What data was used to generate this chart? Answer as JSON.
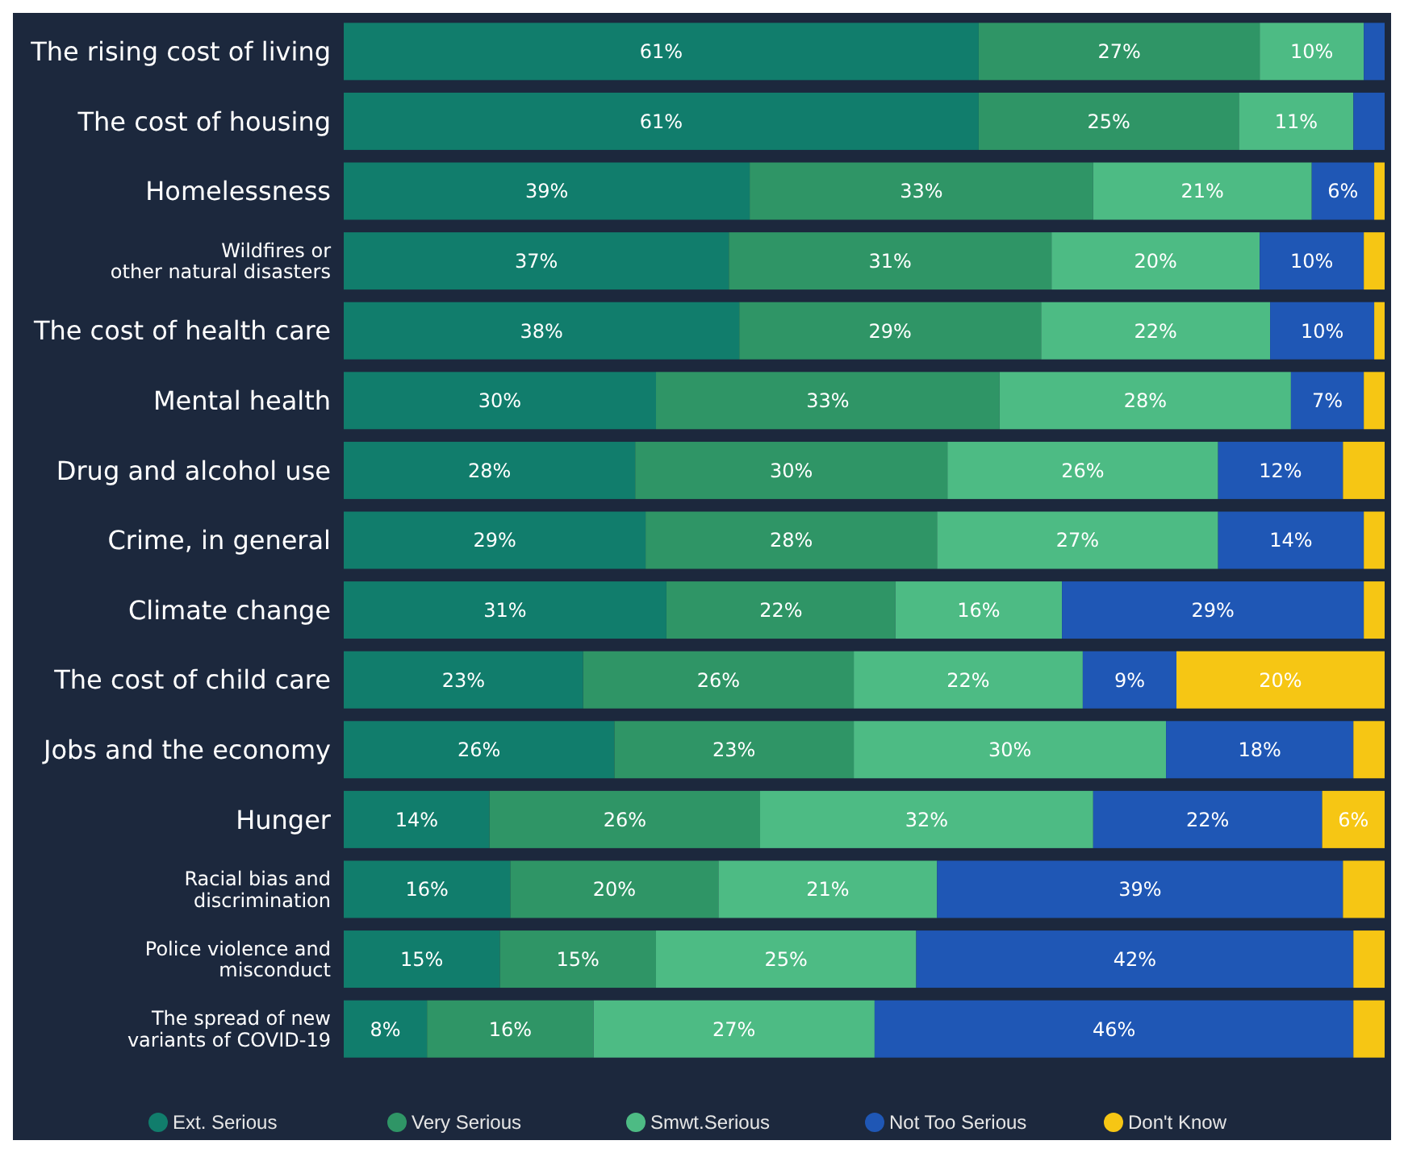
{
  "chart_data": {
    "type": "bar",
    "orientation": "horizontal",
    "stacked": true,
    "legend": "bottom",
    "tick_labels": "y",
    "xlim": [
      0,
      100
    ],
    "categories": [
      "The rising cost of living",
      "The cost of housing",
      "Homelessness",
      "Wildfires or\nother natural disasters",
      "The cost of health care",
      "Mental health",
      "Drug and alcohol use",
      "Crime, in general",
      "Climate change",
      "The cost of child care",
      "Jobs and the economy",
      "Hunger",
      "Racial bias and\ndiscrimination",
      "Police violence and\nmisconduct",
      "The spread of new\nvariants of COVID-19"
    ],
    "series": [
      {
        "name": "Ext. Serious",
        "color": "#117d6c",
        "values": [
          61,
          61,
          39,
          37,
          38,
          30,
          28,
          29,
          31,
          23,
          26,
          14,
          16,
          15,
          8
        ],
        "value_labels": [
          "61%",
          "61%",
          "39%",
          "37%",
          "38%",
          "30%",
          "28%",
          "29%",
          "31%",
          "23%",
          "26%",
          "14%",
          "16%",
          "15%",
          "8%"
        ]
      },
      {
        "name": "Very Serious",
        "color": "#2f9566",
        "values": [
          27,
          25,
          33,
          31,
          29,
          33,
          30,
          28,
          22,
          26,
          23,
          26,
          20,
          15,
          16
        ],
        "value_labels": [
          "27%",
          "25%",
          "33%",
          "31%",
          "29%",
          "33%",
          "30%",
          "28%",
          "22%",
          "26%",
          "23%",
          "26%",
          "20%",
          "15%",
          "16%"
        ]
      },
      {
        "name": "Smwt.Serious",
        "color": "#4dbb84",
        "values": [
          10,
          11,
          21,
          20,
          22,
          28,
          26,
          27,
          16,
          22,
          30,
          32,
          21,
          25,
          27
        ],
        "value_labels": [
          "10%",
          "11%",
          "21%",
          "20%",
          "22%",
          "28%",
          "26%",
          "27%",
          "16%",
          "22%",
          "30%",
          "32%",
          "21%",
          "25%",
          "27%"
        ]
      },
      {
        "name": "Not Too Serious",
        "color": "#1f57b5",
        "values": [
          2,
          3,
          6,
          10,
          10,
          7,
          12,
          14,
          29,
          9,
          18,
          22,
          39,
          42,
          46
        ],
        "value_labels": [
          null,
          null,
          "6%",
          "10%",
          "10%",
          "7%",
          "12%",
          "14%",
          "29%",
          "9%",
          "18%",
          "22%",
          "39%",
          "42%",
          "46%"
        ]
      },
      {
        "name": "Don't Know",
        "color": "#f6c614",
        "values": [
          null,
          null,
          1,
          2,
          1,
          2,
          4,
          2,
          2,
          20,
          3,
          6,
          4,
          3,
          3
        ],
        "value_labels": [
          null,
          null,
          null,
          null,
          null,
          null,
          null,
          null,
          null,
          "20%",
          null,
          "6%",
          null,
          null,
          null
        ]
      }
    ]
  }
}
